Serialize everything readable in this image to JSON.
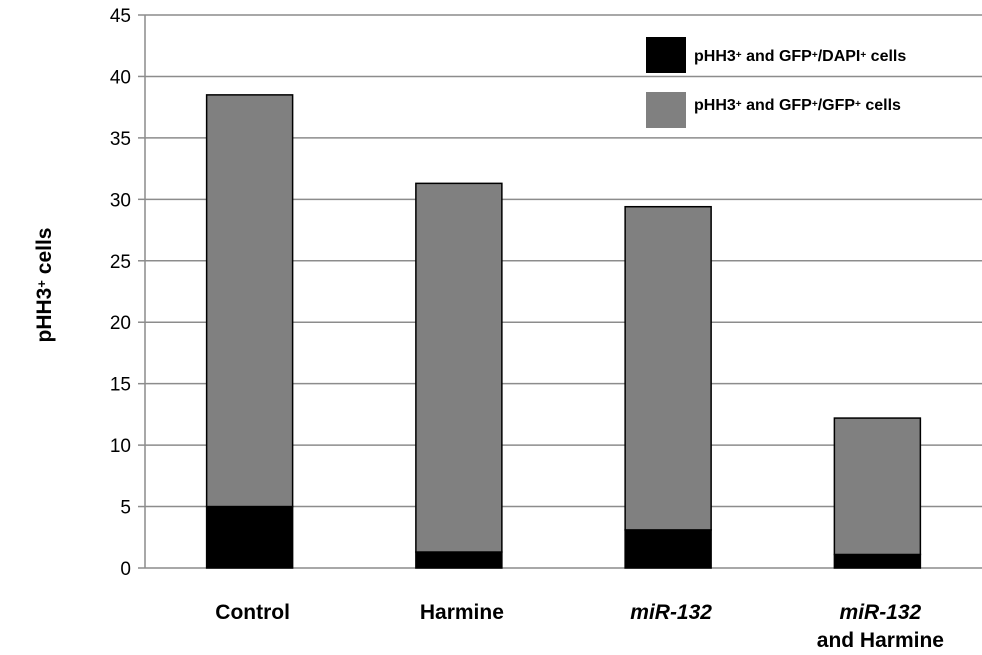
{
  "chart_data": {
    "type": "bar",
    "stacked": true,
    "categories": [
      {
        "lines": [
          "Control"
        ],
        "italic": [
          false
        ]
      },
      {
        "lines": [
          "Harmine"
        ],
        "italic": [
          false
        ]
      },
      {
        "lines": [
          "miR-132"
        ],
        "italic": [
          true
        ]
      },
      {
        "lines": [
          "miR-132",
          "and Harmine"
        ],
        "italic": [
          true,
          false
        ]
      }
    ],
    "series": [
      {
        "name": "pHH3+ and GFP+/DAPI+ cells",
        "legend_parts": [
          "pHH3",
          "+",
          " and GFP",
          "+",
          "/DAPI",
          "+",
          " cells"
        ],
        "color": "#000000",
        "values": [
          5.0,
          1.3,
          3.1,
          1.1
        ]
      },
      {
        "name": "pHH3+ and GFP+/GFP+ cells",
        "legend_parts": [
          "pHH3",
          "+",
          " and GFP",
          "+",
          "/GFP",
          "+",
          " cells"
        ],
        "color": "#808080",
        "values": [
          33.5,
          30.0,
          26.3,
          11.1
        ]
      }
    ],
    "ylabel_parts": [
      "pHH3",
      "+",
      "  cells"
    ],
    "ylim": [
      0,
      45
    ],
    "yticks": [
      0,
      5,
      10,
      15,
      20,
      25,
      30,
      35,
      40,
      45
    ],
    "grid": true,
    "legend_position": "top-right"
  }
}
